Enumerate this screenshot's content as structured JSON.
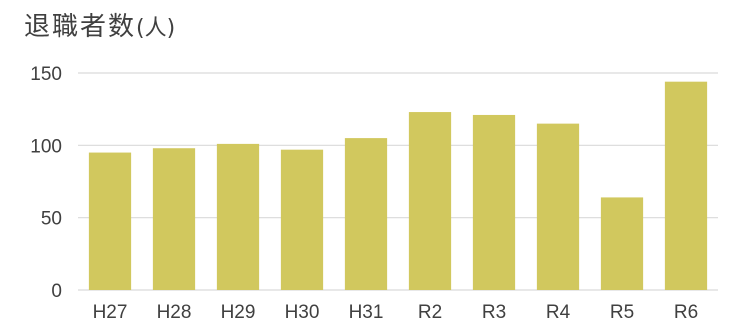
{
  "chart_data": {
    "type": "bar",
    "title": "退職者数",
    "unit": "(人)",
    "categories": [
      "H27",
      "H28",
      "H29",
      "H30",
      "H31",
      "R2",
      "R3",
      "R4",
      "R5",
      "R6"
    ],
    "values": [
      95,
      98,
      101,
      97,
      105,
      123,
      121,
      115,
      64,
      144
    ],
    "ylim": [
      0,
      150
    ],
    "yticks": [
      0,
      50,
      100,
      150
    ],
    "grid": true,
    "bar_color": "#d1c85e",
    "grid_color": "#d9d9d9"
  }
}
